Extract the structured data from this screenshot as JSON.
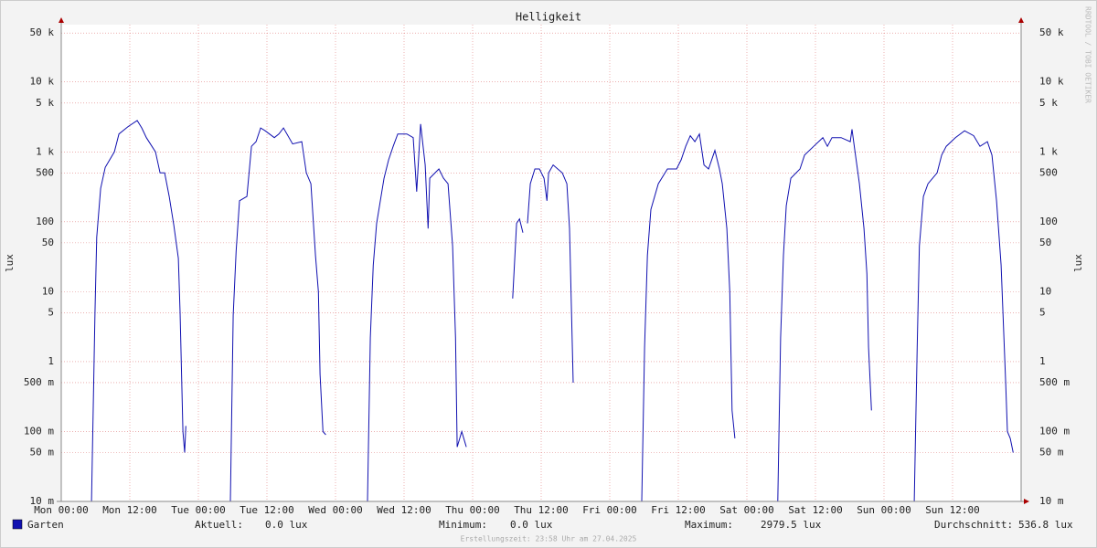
{
  "chart_data": {
    "type": "line",
    "title": "Helligkeit",
    "y_label": "lux",
    "y2_label": "lux",
    "watermark": "RRDTOOL / TOBI OETIKER",
    "log_scale": true,
    "grid": true,
    "xlim": [
      0,
      168
    ],
    "xticks": [
      {
        "value": 0,
        "label": "Mon 00:00"
      },
      {
        "value": 12,
        "label": "Mon 12:00"
      },
      {
        "value": 24,
        "label": "Tue 00:00"
      },
      {
        "value": 36,
        "label": "Tue 12:00"
      },
      {
        "value": 48,
        "label": "Wed 00:00"
      },
      {
        "value": 60,
        "label": "Wed 12:00"
      },
      {
        "value": 72,
        "label": "Thu 00:00"
      },
      {
        "value": 84,
        "label": "Thu 12:00"
      },
      {
        "value": 96,
        "label": "Fri 00:00"
      },
      {
        "value": 108,
        "label": "Fri 12:00"
      },
      {
        "value": 120,
        "label": "Sat 00:00"
      },
      {
        "value": 132,
        "label": "Sat 12:00"
      },
      {
        "value": 144,
        "label": "Sun 00:00"
      },
      {
        "value": 156,
        "label": "Sun 12:00"
      }
    ],
    "ylim": [
      0.01,
      66000
    ],
    "yticks": [
      {
        "value": 0.01,
        "label": "10 m"
      },
      {
        "value": 0.05,
        "label": "50 m"
      },
      {
        "value": 0.1,
        "label": "100 m"
      },
      {
        "value": 0.5,
        "label": "500 m"
      },
      1,
      5,
      10,
      50,
      100,
      500,
      {
        "value": 1000,
        "label": "1 k"
      },
      {
        "value": 5000,
        "label": "5 k"
      },
      {
        "value": 10000,
        "label": "10 k"
      },
      {
        "value": 50000,
        "label": "50 k"
      }
    ],
    "x": [
      5.3,
      5.9,
      6.2,
      6.9,
      7.7,
      9.3,
      10.1,
      11.7,
      13.3,
      14.1,
      14.9,
      16.5,
      17.3,
      18.1,
      18.9,
      19.7,
      20.5,
      20.8,
      21.3,
      21.6,
      21.8,
      25,
      29.6,
      30.1,
      30.6,
      31.2,
      32.5,
      33.3,
      34.1,
      34.9,
      35.7,
      37.3,
      38.1,
      38.9,
      40.5,
      42.1,
      42.9,
      43.7,
      44.5,
      45.0,
      45.3,
      45.8,
      46.3,
      50,
      53.6,
      54.1,
      54.6,
      55.2,
      56.5,
      57.3,
      58.1,
      58.9,
      60.5,
      61.6,
      62.2,
      62.9,
      63.7,
      64.2,
      64.5,
      66.1,
      66.9,
      67.7,
      68.5,
      69.0,
      69.3,
      70.1,
      70.9,
      75,
      79.0,
      79.7,
      80.2,
      80.8,
      81.2,
      81.6,
      82.1,
      82.9,
      83.7,
      84.5,
      85.0,
      85.3,
      86.1,
      86.9,
      87.7,
      88.5,
      88.96,
      89.6,
      95,
      101.6,
      102.1,
      102.6,
      103.2,
      104.5,
      106.1,
      107.7,
      108.5,
      109.3,
      110.1,
      110.9,
      111.7,
      112.5,
      113.3,
      114.4,
      115.2,
      115.7,
      116.5,
      117.0,
      117.4,
      117.9,
      120,
      125.4,
      125.9,
      126.4,
      126.9,
      127.7,
      129.3,
      130.1,
      131.7,
      133.3,
      134.1,
      134.9,
      136.5,
      138.1,
      138.4,
      138.9,
      139.7,
      140.5,
      141.0,
      141.3,
      141.8,
      145,
      149.3,
      149.8,
      150.2,
      150.9,
      151.7,
      153.3,
      154.1,
      154.9,
      156.5,
      158.1,
      159.7,
      160.8,
      162.1,
      162.9,
      163.7,
      164.5,
      165.3,
      165.6,
      166.1,
      166.6
    ],
    "series": [
      {
        "name": "Garten",
        "color": "#1010b0",
        "values": [
          0.01,
          5,
          60,
          300,
          600,
          1000,
          1800,
          2300,
          2800,
          2200,
          1600,
          1000,
          500,
          500,
          230,
          90,
          30,
          5,
          0.1,
          0.05,
          0.12,
          null,
          0.01,
          4.6,
          38,
          200,
          230,
          1200,
          1400,
          2200,
          2000,
          1600,
          1800,
          2200,
          1300,
          1400,
          500,
          350,
          33,
          10,
          0.66,
          0.1,
          0.09,
          null,
          0.01,
          2.2,
          24,
          95,
          420,
          770,
          1200,
          1800,
          1800,
          1600,
          270,
          2500,
          650,
          80,
          420,
          570,
          420,
          350,
          45,
          2.2,
          0.06,
          0.1,
          0.06,
          null,
          8,
          95,
          110,
          70,
          null,
          95,
          350,
          570,
          570,
          420,
          200,
          500,
          650,
          570,
          500,
          350,
          80,
          0.5,
          null,
          0.01,
          1.6,
          33,
          150,
          350,
          570,
          570,
          770,
          1200,
          1700,
          1400,
          1800,
          650,
          570,
          1050,
          570,
          350,
          80,
          10,
          0.2,
          0.08,
          null,
          0.01,
          2.2,
          33,
          170,
          420,
          570,
          900,
          1200,
          1600,
          1200,
          1600,
          1600,
          1400,
          2100,
          1050,
          350,
          80,
          18,
          1.6,
          0.2,
          null,
          0.01,
          1.6,
          45,
          230,
          350,
          500,
          900,
          1200,
          1600,
          2000,
          1700,
          1200,
          1400,
          900,
          200,
          24,
          0.5,
          0.1,
          0.08,
          0.05
        ]
      }
    ],
    "stats": [
      {
        "label": "Aktuell:",
        "value": "0.0 lux"
      },
      {
        "label": "Minimum:",
        "value": "0.0 lux"
      },
      {
        "label": "Maximum:",
        "value": "2979.5 lux"
      },
      {
        "label": "Durchschnitt:",
        "value": "536.8 lux"
      }
    ],
    "footer": "Erstellungszeit: 23:58 Uhr am 27.04.2025"
  }
}
